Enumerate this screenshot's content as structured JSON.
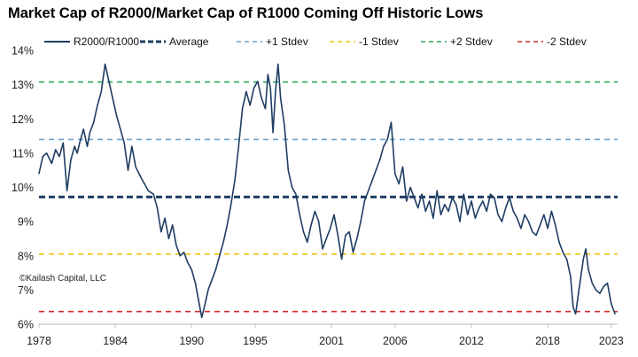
{
  "title": "Market Cap of R2000/Market Cap of R1000 Coming Off Historic Lows",
  "credit": "©Kailash Capital, LLC",
  "colors": {
    "series": "#1f3d63",
    "average": "#1f3d63",
    "plus1": "#6aa3d0",
    "minus1": "#f2c316",
    "plus2": "#2aa55a",
    "minus2": "#d42a2a"
  },
  "chart_data": {
    "type": "line",
    "title": "Market Cap of R2000/Market Cap of R1000 Coming Off Historic Lows",
    "xlabel": "",
    "ylabel": "",
    "xlim": [
      1978,
      2023.5
    ],
    "ylim": [
      6,
      14
    ],
    "grid": false,
    "legend_position": "top",
    "x_tick_labels": [
      "1978",
      "1984",
      "1990",
      "1995",
      "2001",
      "2006",
      "2012",
      "2018",
      "2023"
    ],
    "x_tick_values": [
      1978,
      1984,
      1990,
      1995,
      2001,
      2006,
      2012,
      2018,
      2023
    ],
    "y_tick_labels": [
      "6%",
      "7%",
      "8%",
      "9%",
      "10%",
      "11%",
      "12%",
      "13%",
      "14%"
    ],
    "y_tick_values": [
      6,
      7,
      8,
      9,
      10,
      11,
      12,
      13,
      14
    ],
    "legend": [
      "R2000/R1000",
      "Average",
      "+1 Stdev",
      "-1 Stdev",
      "+2 Stdev",
      "-2 Stdev"
    ],
    "reference_lines": [
      {
        "name": "Average",
        "value": 9.72,
        "style": "dashed-thick"
      },
      {
        "name": "+1 Stdev",
        "value": 11.4,
        "style": "dashed"
      },
      {
        "name": "-1 Stdev",
        "value": 8.05,
        "style": "dashed"
      },
      {
        "name": "+2 Stdev",
        "value": 13.08,
        "style": "dashed"
      },
      {
        "name": "-2 Stdev",
        "value": 6.37,
        "style": "dashed"
      }
    ],
    "series": [
      {
        "name": "R2000/R1000",
        "x": [
          1978.0,
          1978.3,
          1978.6,
          1979.0,
          1979.3,
          1979.6,
          1979.9,
          1980.2,
          1980.5,
          1980.8,
          1981.0,
          1981.2,
          1981.5,
          1981.8,
          1982.0,
          1982.3,
          1982.6,
          1982.9,
          1983.2,
          1983.5,
          1983.8,
          1984.1,
          1984.4,
          1984.7,
          1985.0,
          1985.3,
          1985.6,
          1986.0,
          1986.3,
          1986.6,
          1987.0,
          1987.3,
          1987.6,
          1987.9,
          1988.2,
          1988.5,
          1988.8,
          1989.1,
          1989.4,
          1989.7,
          1990.0,
          1990.3,
          1990.6,
          1990.8,
          1991.0,
          1991.3,
          1991.6,
          1991.9,
          1992.2,
          1992.5,
          1992.8,
          1993.1,
          1993.4,
          1993.7,
          1994.0,
          1994.3,
          1994.6,
          1994.9,
          1995.2,
          1995.5,
          1995.8,
          1996.0,
          1996.2,
          1996.4,
          1996.6,
          1996.8,
          1997.0,
          1997.3,
          1997.6,
          1997.9,
          1998.2,
          1998.5,
          1998.8,
          1999.1,
          1999.4,
          1999.7,
          2000.0,
          2000.3,
          2000.6,
          2000.9,
          2001.2,
          2001.5,
          2001.8,
          2002.1,
          2002.4,
          2002.7,
          2003.0,
          2003.3,
          2003.6,
          2003.9,
          2004.2,
          2004.5,
          2004.8,
          2005.1,
          2005.4,
          2005.7,
          2006.0,
          2006.3,
          2006.6,
          2006.9,
          2007.2,
          2007.5,
          2007.8,
          2008.1,
          2008.4,
          2008.7,
          2009.0,
          2009.3,
          2009.6,
          2009.9,
          2010.2,
          2010.5,
          2010.8,
          2011.1,
          2011.4,
          2011.7,
          2012.0,
          2012.3,
          2012.6,
          2012.9,
          2013.2,
          2013.5,
          2013.8,
          2014.1,
          2014.4,
          2014.7,
          2015.0,
          2015.3,
          2015.6,
          2015.9,
          2016.2,
          2016.5,
          2016.8,
          2017.1,
          2017.4,
          2017.7,
          2018.0,
          2018.3,
          2018.6,
          2018.9,
          2019.2,
          2019.5,
          2019.8,
          2020.0,
          2020.2,
          2020.5,
          2020.8,
          2021.0,
          2021.2,
          2021.5,
          2021.8,
          2022.1,
          2022.4,
          2022.7,
          2023.0,
          2023.3
        ],
        "values": [
          10.4,
          10.9,
          11.0,
          10.7,
          11.1,
          10.9,
          11.3,
          9.9,
          10.8,
          11.2,
          11.0,
          11.3,
          11.7,
          11.2,
          11.6,
          11.9,
          12.4,
          12.8,
          13.6,
          13.1,
          12.6,
          12.1,
          11.7,
          11.3,
          10.5,
          11.2,
          10.6,
          10.3,
          10.1,
          9.9,
          9.8,
          9.4,
          8.7,
          9.1,
          8.5,
          8.9,
          8.3,
          8.0,
          8.1,
          7.8,
          7.6,
          7.2,
          6.6,
          6.2,
          6.5,
          7.0,
          7.3,
          7.6,
          8.0,
          8.4,
          8.9,
          9.5,
          10.2,
          11.2,
          12.3,
          12.8,
          12.4,
          12.9,
          13.1,
          12.6,
          12.3,
          13.3,
          12.9,
          11.6,
          12.8,
          13.6,
          12.6,
          11.8,
          10.5,
          10.0,
          9.8,
          9.2,
          8.7,
          8.4,
          8.9,
          9.3,
          9.0,
          8.2,
          8.5,
          8.8,
          9.2,
          8.6,
          7.9,
          8.6,
          8.7,
          8.1,
          8.5,
          9.0,
          9.6,
          9.9,
          10.2,
          10.5,
          10.8,
          11.2,
          11.4,
          11.9,
          10.4,
          10.1,
          10.6,
          9.6,
          10.0,
          9.7,
          9.4,
          9.8,
          9.3,
          9.6,
          9.1,
          9.9,
          9.2,
          9.5,
          9.3,
          9.7,
          9.5,
          9.0,
          9.8,
          9.2,
          9.6,
          9.1,
          9.4,
          9.6,
          9.3,
          9.8,
          9.7,
          9.2,
          9.0,
          9.4,
          9.7,
          9.3,
          9.1,
          8.8,
          9.2,
          9.0,
          8.7,
          8.6,
          8.9,
          9.2,
          8.8,
          9.3,
          8.9,
          8.4,
          8.1,
          7.9,
          7.4,
          6.5,
          6.3,
          7.1,
          7.9,
          8.2,
          7.6,
          7.2,
          7.0,
          6.9,
          7.1,
          7.2,
          6.6,
          6.3
        ]
      }
    ]
  }
}
